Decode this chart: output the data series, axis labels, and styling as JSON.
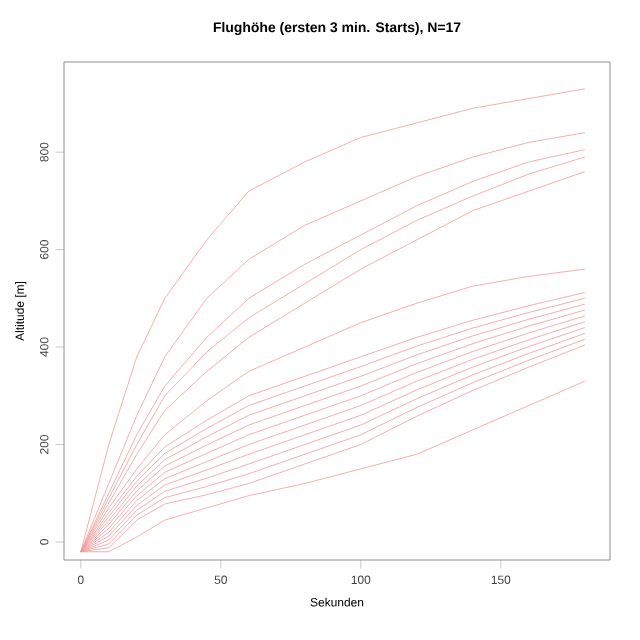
{
  "chart_data": {
    "type": "line",
    "title": "Flughöhe (ersten 3 min. Starts), N=17",
    "xlabel": "Sekunden",
    "ylabel": "Altitude [m]",
    "x": [
      0,
      10,
      20,
      30,
      45,
      60,
      80,
      100,
      120,
      140,
      160,
      180
    ],
    "xlim": [
      -6,
      189
    ],
    "ylim": [
      -37,
      985
    ],
    "xticks": [
      0,
      50,
      100,
      150
    ],
    "yticks": [
      0,
      200,
      400,
      600,
      800
    ],
    "grid": false,
    "series": [
      {
        "color": "#f29a9a",
        "values": [
          -20,
          200,
          380,
          500,
          620,
          720,
          780,
          830,
          860,
          890,
          910,
          930
        ]
      },
      {
        "color": "#f29a9a",
        "values": [
          -20,
          120,
          260,
          380,
          500,
          580,
          650,
          700,
          750,
          790,
          820,
          840
        ]
      },
      {
        "color": "#f29a9a",
        "values": [
          -20,
          100,
          220,
          320,
          420,
          500,
          570,
          630,
          690,
          740,
          780,
          805
        ]
      },
      {
        "color": "#f29a9a",
        "values": [
          -20,
          90,
          200,
          300,
          390,
          460,
          530,
          600,
          660,
          710,
          755,
          790
        ]
      },
      {
        "color": "#f29a9a",
        "values": [
          -20,
          80,
          180,
          270,
          350,
          420,
          490,
          560,
          620,
          680,
          720,
          760
        ]
      },
      {
        "color": "#f29a9a",
        "values": [
          -20,
          70,
          150,
          220,
          290,
          350,
          400,
          450,
          490,
          525,
          545,
          560
        ]
      },
      {
        "color": "#f29a9a",
        "values": [
          -20,
          60,
          135,
          195,
          250,
          300,
          340,
          380,
          420,
          455,
          485,
          512
        ]
      },
      {
        "color": "#f29a9a",
        "values": [
          -20,
          52,
          125,
          182,
          233,
          280,
          320,
          360,
          402,
          439,
          471,
          500
        ]
      },
      {
        "color": "#f29a9a",
        "values": [
          -20,
          44,
          115,
          169,
          216,
          260,
          300,
          340,
          384,
          423,
          457,
          488
        ]
      },
      {
        "color": "#f29a9a",
        "values": [
          -20,
          36,
          105,
          156,
          199,
          240,
          280,
          320,
          366,
          407,
          443,
          476
        ]
      },
      {
        "color": "#f29a9a",
        "values": [
          -20,
          28,
          95,
          143,
          182,
          220,
          260,
          300,
          348,
          391,
          429,
          464
        ]
      },
      {
        "color": "#f29a9a",
        "values": [
          -20,
          20,
          85,
          130,
          165,
          200,
          240,
          280,
          330,
          375,
          415,
          452
        ]
      },
      {
        "color": "#f29a9a",
        "values": [
          -20,
          12,
          75,
          117,
          148,
          180,
          220,
          260,
          312,
          359,
          401,
          440
        ]
      },
      {
        "color": "#f29a9a",
        "values": [
          -20,
          4,
          65,
          104,
          131,
          160,
          200,
          240,
          294,
          343,
          387,
          428
        ]
      },
      {
        "color": "#f29a9a",
        "values": [
          -20,
          -4,
          55,
          91,
          114,
          140,
          180,
          220,
          276,
          327,
          373,
          416
        ]
      },
      {
        "color": "#f29a9a",
        "values": [
          -20,
          -12,
          45,
          78,
          97,
          120,
          160,
          200,
          258,
          311,
          359,
          404
        ]
      },
      {
        "color": "#f29a9a",
        "values": [
          -20,
          -20,
          10,
          45,
          70,
          95,
          120,
          150,
          180,
          230,
          280,
          330
        ]
      }
    ]
  }
}
